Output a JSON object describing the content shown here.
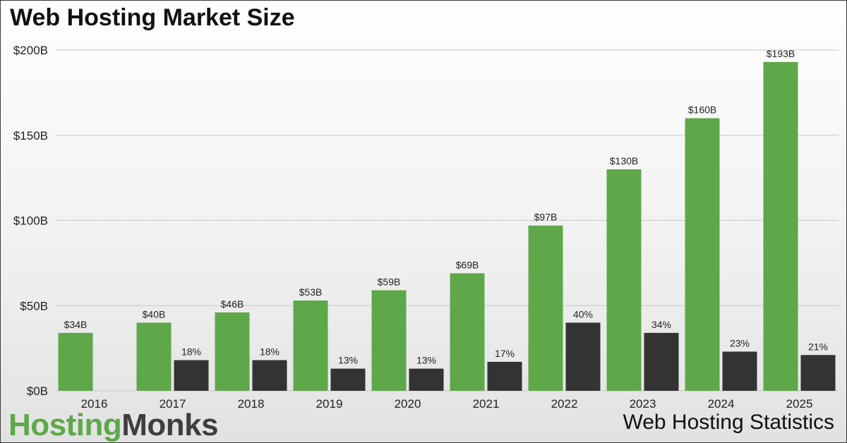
{
  "colors": {
    "market_size": "#5ea84a",
    "growth": "#333333",
    "grid": "#c8c8c8"
  },
  "brand": {
    "part1": "Hosting",
    "part2": "Monks"
  },
  "footer_caption": "Web Hosting Statistics",
  "chart_data": {
    "type": "bar",
    "title": "Web Hosting Market Size",
    "xlabel": "",
    "ylabel": "",
    "ylim": [
      0,
      200
    ],
    "yticks": [
      0,
      50,
      100,
      150,
      200
    ],
    "ytick_labels": [
      "$0B",
      "$50B",
      "$100B",
      "$150B",
      "$200B"
    ],
    "grid": true,
    "legend": "none",
    "categories": [
      "2016",
      "2017",
      "2018",
      "2019",
      "2020",
      "2021",
      "2022",
      "2023",
      "2024",
      "2025"
    ],
    "series": [
      {
        "values": [
          34,
          40,
          46,
          53,
          59,
          69,
          97,
          130,
          160,
          193
        ],
        "labels": [
          "$34B",
          "$40B",
          "$46B",
          "$53B",
          "$59B",
          "$69B",
          "$97B",
          "$130B",
          "$160B",
          "$193B"
        ]
      },
      {
        "values": [
          null,
          18,
          18,
          13,
          13,
          17,
          40,
          34,
          23,
          21
        ],
        "labels": [
          "",
          "18%",
          "18%",
          "13%",
          "13%",
          "17%",
          "40%",
          "34%",
          "23%",
          "21%"
        ]
      }
    ]
  }
}
